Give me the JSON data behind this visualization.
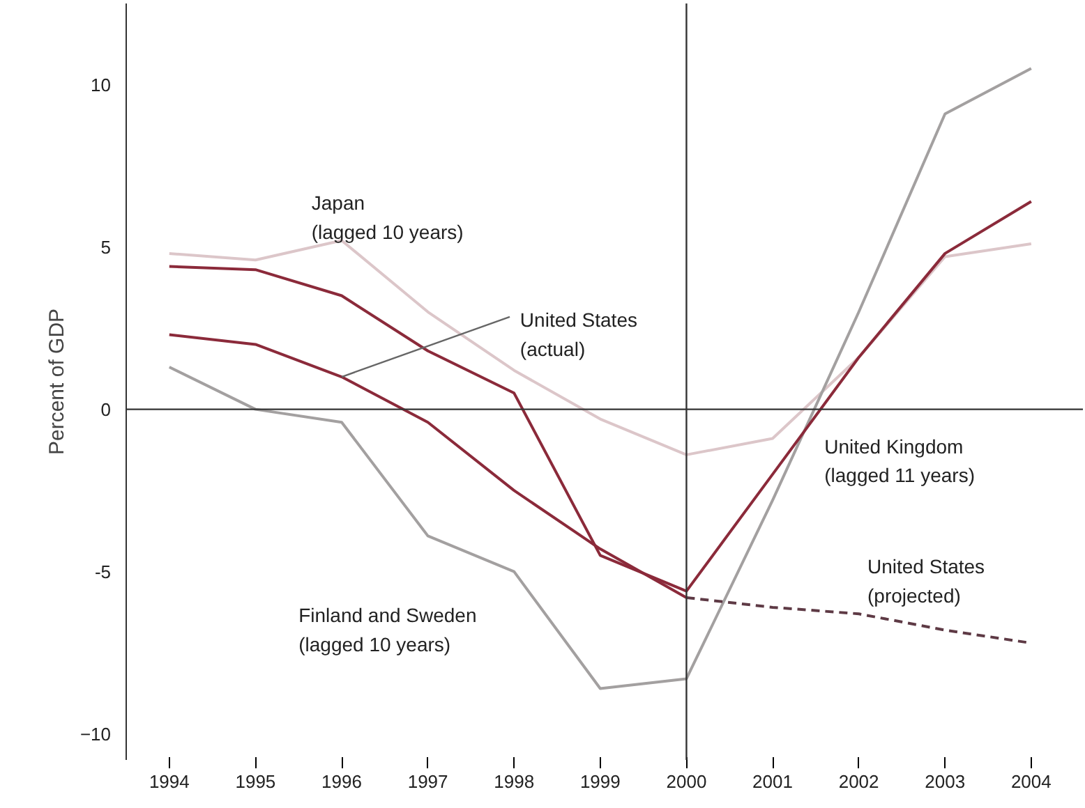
{
  "chart_data": {
    "type": "line",
    "ylabel": "Percent of GDP",
    "legend": false,
    "grid": false,
    "xlim": [
      1993.5,
      2004.6
    ],
    "ylim": [
      -10.8,
      12.5
    ],
    "xticks": [
      1994,
      1995,
      1996,
      1997,
      1998,
      1999,
      2000,
      2001,
      2002,
      2003,
      2004
    ],
    "yticks": [
      {
        "value": -10,
        "label": "−10"
      },
      {
        "value": -5,
        "label": "-5"
      },
      0,
      5,
      10
    ],
    "series": [
      {
        "name": "Japan\n(lagged 10 years)",
        "color": "#dcc6c9",
        "x": [
          1994,
          1995,
          1996,
          1997,
          1998,
          1999,
          2000,
          2001,
          2002,
          2003,
          2004
        ],
        "values": [
          4.8,
          4.6,
          5.2,
          3.0,
          1.2,
          -0.3,
          -1.4,
          -0.9,
          1.6,
          4.7,
          5.1
        ]
      },
      {
        "name": "Finland and Sweden\n(lagged 10 years)",
        "color": "#a3a0a0",
        "x": [
          1994,
          1995,
          1996,
          1997,
          1998,
          1999,
          2000,
          2001,
          2002,
          2003,
          2004
        ],
        "values": [
          1.3,
          0.0,
          -0.4,
          -3.9,
          -5.0,
          -8.6,
          -8.3,
          -2.8,
          3.0,
          9.1,
          10.5
        ]
      },
      {
        "name": "United Kingdom\n(lagged 11 years)",
        "color": "#8b2a3a",
        "x": [
          1994,
          1995,
          1996,
          1997,
          1998,
          1999,
          2000,
          2001,
          2002,
          2003,
          2004
        ],
        "values": [
          4.4,
          4.3,
          3.5,
          1.8,
          0.5,
          -4.5,
          -5.6,
          -2.0,
          1.6,
          4.8,
          6.4
        ]
      },
      {
        "name": "United States\n(actual)",
        "color": "#8b2a3a",
        "x": [
          1994,
          1995,
          1996,
          1997,
          1998,
          1999,
          2000
        ],
        "values": [
          2.3,
          2.0,
          1.0,
          -0.4,
          -2.5,
          -4.3,
          -5.8
        ]
      },
      {
        "name": "United States\n(projected)",
        "color": "#5e3a45",
        "line_style": "dashed",
        "x": [
          2000,
          2001,
          2002,
          2003,
          2004
        ],
        "values": [
          -5.8,
          -6.1,
          -6.3,
          -6.8,
          -7.2
        ]
      }
    ],
    "ref_lines": [
      {
        "axis": "x",
        "value": 2000,
        "color": "#333333"
      },
      {
        "axis": "y",
        "value": 0,
        "color": "#333333"
      }
    ]
  }
}
